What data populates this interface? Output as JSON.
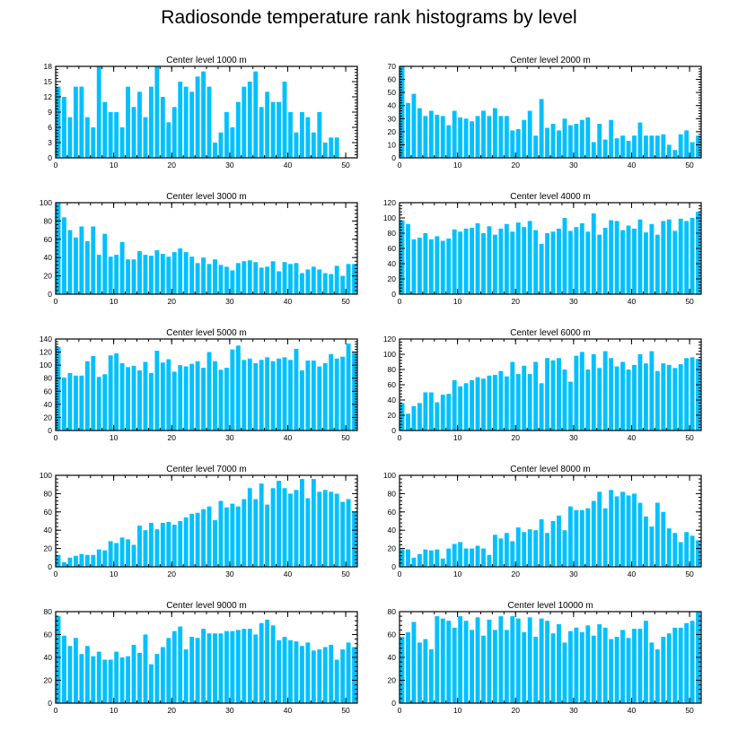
{
  "figure": {
    "title": "Radiosonde temperature rank histograms by level"
  },
  "chart_data": [
    {
      "type": "bar",
      "title": "Center level 1000 m",
      "xlim": [
        0,
        52
      ],
      "ylim": [
        0,
        18
      ],
      "xticks": [
        0,
        10,
        20,
        30,
        40,
        50
      ],
      "yticks": [
        0,
        3,
        6,
        9,
        12,
        15,
        18
      ],
      "bar_color": "#00c0ff",
      "values": [
        14,
        12,
        8,
        14,
        14,
        8,
        6,
        18,
        11,
        9,
        9,
        6,
        14,
        10,
        13,
        8,
        14,
        18,
        12,
        7,
        10,
        15,
        14,
        13,
        16,
        17,
        14,
        3,
        5,
        9,
        6,
        11,
        14,
        15,
        17,
        10,
        13,
        11,
        11,
        15,
        9,
        5,
        9,
        8,
        5,
        9,
        3,
        4,
        4
      ]
    },
    {
      "type": "bar",
      "title": "Center level 2000 m",
      "xlim": [
        0,
        52
      ],
      "ylim": [
        0,
        70
      ],
      "xticks": [
        0,
        10,
        20,
        30,
        40,
        50
      ],
      "yticks": [
        0,
        10,
        20,
        30,
        40,
        50,
        60,
        70
      ],
      "bar_color": "#00c0ff",
      "values": [
        70,
        42,
        49,
        38,
        32,
        36,
        33,
        32,
        25,
        36,
        31,
        30,
        28,
        32,
        36,
        32,
        38,
        32,
        32,
        21,
        22,
        29,
        36,
        17,
        45,
        23,
        26,
        21,
        30,
        25,
        26,
        29,
        31,
        12,
        26,
        14,
        29,
        15,
        17,
        13,
        17,
        27,
        17,
        17,
        17,
        18,
        10,
        6,
        18,
        21,
        12,
        17
      ]
    },
    {
      "type": "bar",
      "title": "Center level 3000 m",
      "xlim": [
        0,
        52
      ],
      "ylim": [
        0,
        100
      ],
      "xticks": [
        0,
        10,
        20,
        30,
        40,
        50
      ],
      "yticks": [
        0,
        20,
        40,
        60,
        80,
        100
      ],
      "bar_color": "#00c0ff",
      "values": [
        100,
        84,
        70,
        62,
        74,
        58,
        74,
        43,
        66,
        41,
        43,
        57,
        38,
        38,
        47,
        43,
        42,
        48,
        44,
        41,
        46,
        50,
        46,
        41,
        34,
        40,
        33,
        38,
        32,
        30,
        26,
        34,
        36,
        37,
        35,
        29,
        30,
        36,
        25,
        35,
        33,
        34,
        23,
        27,
        30,
        27,
        23,
        22,
        31,
        20,
        33,
        33
      ]
    },
    {
      "type": "bar",
      "title": "Center level 4000 m",
      "xlim": [
        0,
        52
      ],
      "ylim": [
        0,
        120
      ],
      "xticks": [
        0,
        10,
        20,
        30,
        40,
        50
      ],
      "yticks": [
        0,
        20,
        40,
        60,
        80,
        100,
        120
      ],
      "bar_color": "#00c0ff",
      "values": [
        97,
        92,
        72,
        74,
        80,
        72,
        76,
        70,
        73,
        85,
        82,
        86,
        87,
        93,
        80,
        89,
        78,
        86,
        92,
        82,
        94,
        88,
        96,
        84,
        66,
        80,
        82,
        86,
        100,
        83,
        88,
        93,
        82,
        106,
        78,
        87,
        97,
        96,
        84,
        90,
        86,
        98,
        81,
        92,
        78,
        96,
        98,
        83,
        99,
        96,
        100,
        108
      ]
    },
    {
      "type": "bar",
      "title": "Center level 5000 m",
      "xlim": [
        0,
        52
      ],
      "ylim": [
        0,
        140
      ],
      "xticks": [
        0,
        10,
        20,
        30,
        40,
        50
      ],
      "yticks": [
        0,
        20,
        40,
        60,
        80,
        100,
        120,
        140
      ],
      "bar_color": "#00c0ff",
      "values": [
        128,
        81,
        88,
        84,
        84,
        106,
        114,
        82,
        86,
        115,
        118,
        103,
        97,
        99,
        92,
        105,
        88,
        122,
        104,
        109,
        90,
        100,
        98,
        102,
        106,
        96,
        120,
        106,
        93,
        96,
        124,
        130,
        108,
        110,
        103,
        108,
        112,
        106,
        110,
        112,
        108,
        125,
        92,
        107,
        107,
        98,
        103,
        117,
        110,
        113,
        133,
        119
      ]
    },
    {
      "type": "bar",
      "title": "Center level 6000 m",
      "xlim": [
        0,
        52
      ],
      "ylim": [
        0,
        120
      ],
      "xticks": [
        0,
        10,
        20,
        30,
        40,
        50
      ],
      "yticks": [
        0,
        20,
        40,
        60,
        80,
        100,
        120
      ],
      "bar_color": "#00c0ff",
      "values": [
        36,
        22,
        32,
        36,
        50,
        50,
        37,
        47,
        48,
        66,
        58,
        62,
        66,
        70,
        68,
        72,
        73,
        78,
        71,
        90,
        74,
        85,
        74,
        90,
        62,
        95,
        92,
        95,
        80,
        64,
        98,
        103,
        80,
        100,
        82,
        104,
        95,
        84,
        90,
        80,
        86,
        100,
        88,
        104,
        78,
        88,
        86,
        82,
        87,
        95,
        96,
        94
      ]
    },
    {
      "type": "bar",
      "title": "Center level 7000 m",
      "xlim": [
        0,
        52
      ],
      "ylim": [
        0,
        100
      ],
      "xticks": [
        0,
        10,
        20,
        30,
        40,
        50
      ],
      "yticks": [
        0,
        20,
        40,
        60,
        80,
        100
      ],
      "bar_color": "#00c0ff",
      "values": [
        13,
        5,
        10,
        12,
        14,
        13,
        13,
        19,
        18,
        28,
        26,
        32,
        30,
        24,
        45,
        40,
        48,
        41,
        48,
        49,
        46,
        50,
        54,
        58,
        59,
        63,
        66,
        51,
        72,
        65,
        69,
        66,
        74,
        86,
        74,
        91,
        68,
        86,
        94,
        86,
        80,
        84,
        96,
        75,
        96,
        82,
        84,
        82,
        80,
        71,
        74,
        60
      ]
    },
    {
      "type": "bar",
      "title": "Center level 8000 m",
      "xlim": [
        0,
        52
      ],
      "ylim": [
        0,
        100
      ],
      "xticks": [
        0,
        10,
        20,
        30,
        40,
        50
      ],
      "yticks": [
        0,
        20,
        40,
        60,
        80,
        100
      ],
      "bar_color": "#00c0ff",
      "values": [
        19,
        19,
        10,
        14,
        19,
        18,
        19,
        9,
        20,
        25,
        27,
        20,
        20,
        23,
        20,
        13,
        35,
        31,
        37,
        28,
        43,
        38,
        41,
        40,
        52,
        37,
        50,
        56,
        40,
        66,
        62,
        62,
        64,
        72,
        82,
        64,
        84,
        77,
        82,
        78,
        80,
        70,
        55,
        44,
        70,
        60,
        42,
        37,
        27,
        38,
        34,
        29
      ]
    },
    {
      "type": "bar",
      "title": "Center level 9000 m",
      "xlim": [
        0,
        52
      ],
      "ylim": [
        0,
        80
      ],
      "xticks": [
        0,
        10,
        20,
        30,
        40,
        50
      ],
      "yticks": [
        0,
        20,
        40,
        60,
        80
      ],
      "bar_color": "#00c0ff",
      "values": [
        76,
        59,
        50,
        57,
        43,
        50,
        41,
        45,
        38,
        38,
        45,
        40,
        41,
        51,
        44,
        60,
        34,
        43,
        49,
        57,
        63,
        67,
        47,
        58,
        57,
        65,
        61,
        61,
        61,
        63,
        63,
        64,
        65,
        65,
        60,
        70,
        73,
        68,
        55,
        58,
        55,
        54,
        50,
        53,
        46,
        47,
        49,
        51,
        38,
        47,
        53,
        49
      ]
    },
    {
      "type": "bar",
      "title": "Center level 10000 m",
      "xlim": [
        0,
        52
      ],
      "ylim": [
        0,
        80
      ],
      "xticks": [
        0,
        10,
        20,
        30,
        40,
        50
      ],
      "yticks": [
        0,
        20,
        40,
        60,
        80
      ],
      "bar_color": "#00c0ff",
      "values": [
        58,
        62,
        71,
        53,
        56,
        47,
        76,
        74,
        72,
        66,
        76,
        72,
        64,
        75,
        59,
        73,
        64,
        76,
        64,
        76,
        74,
        62,
        75,
        58,
        74,
        72,
        61,
        69,
        53,
        63,
        66,
        62,
        68,
        59,
        69,
        66,
        56,
        58,
        64,
        57,
        65,
        65,
        72,
        53,
        47,
        58,
        61,
        66,
        66,
        70,
        72,
        80
      ]
    }
  ]
}
